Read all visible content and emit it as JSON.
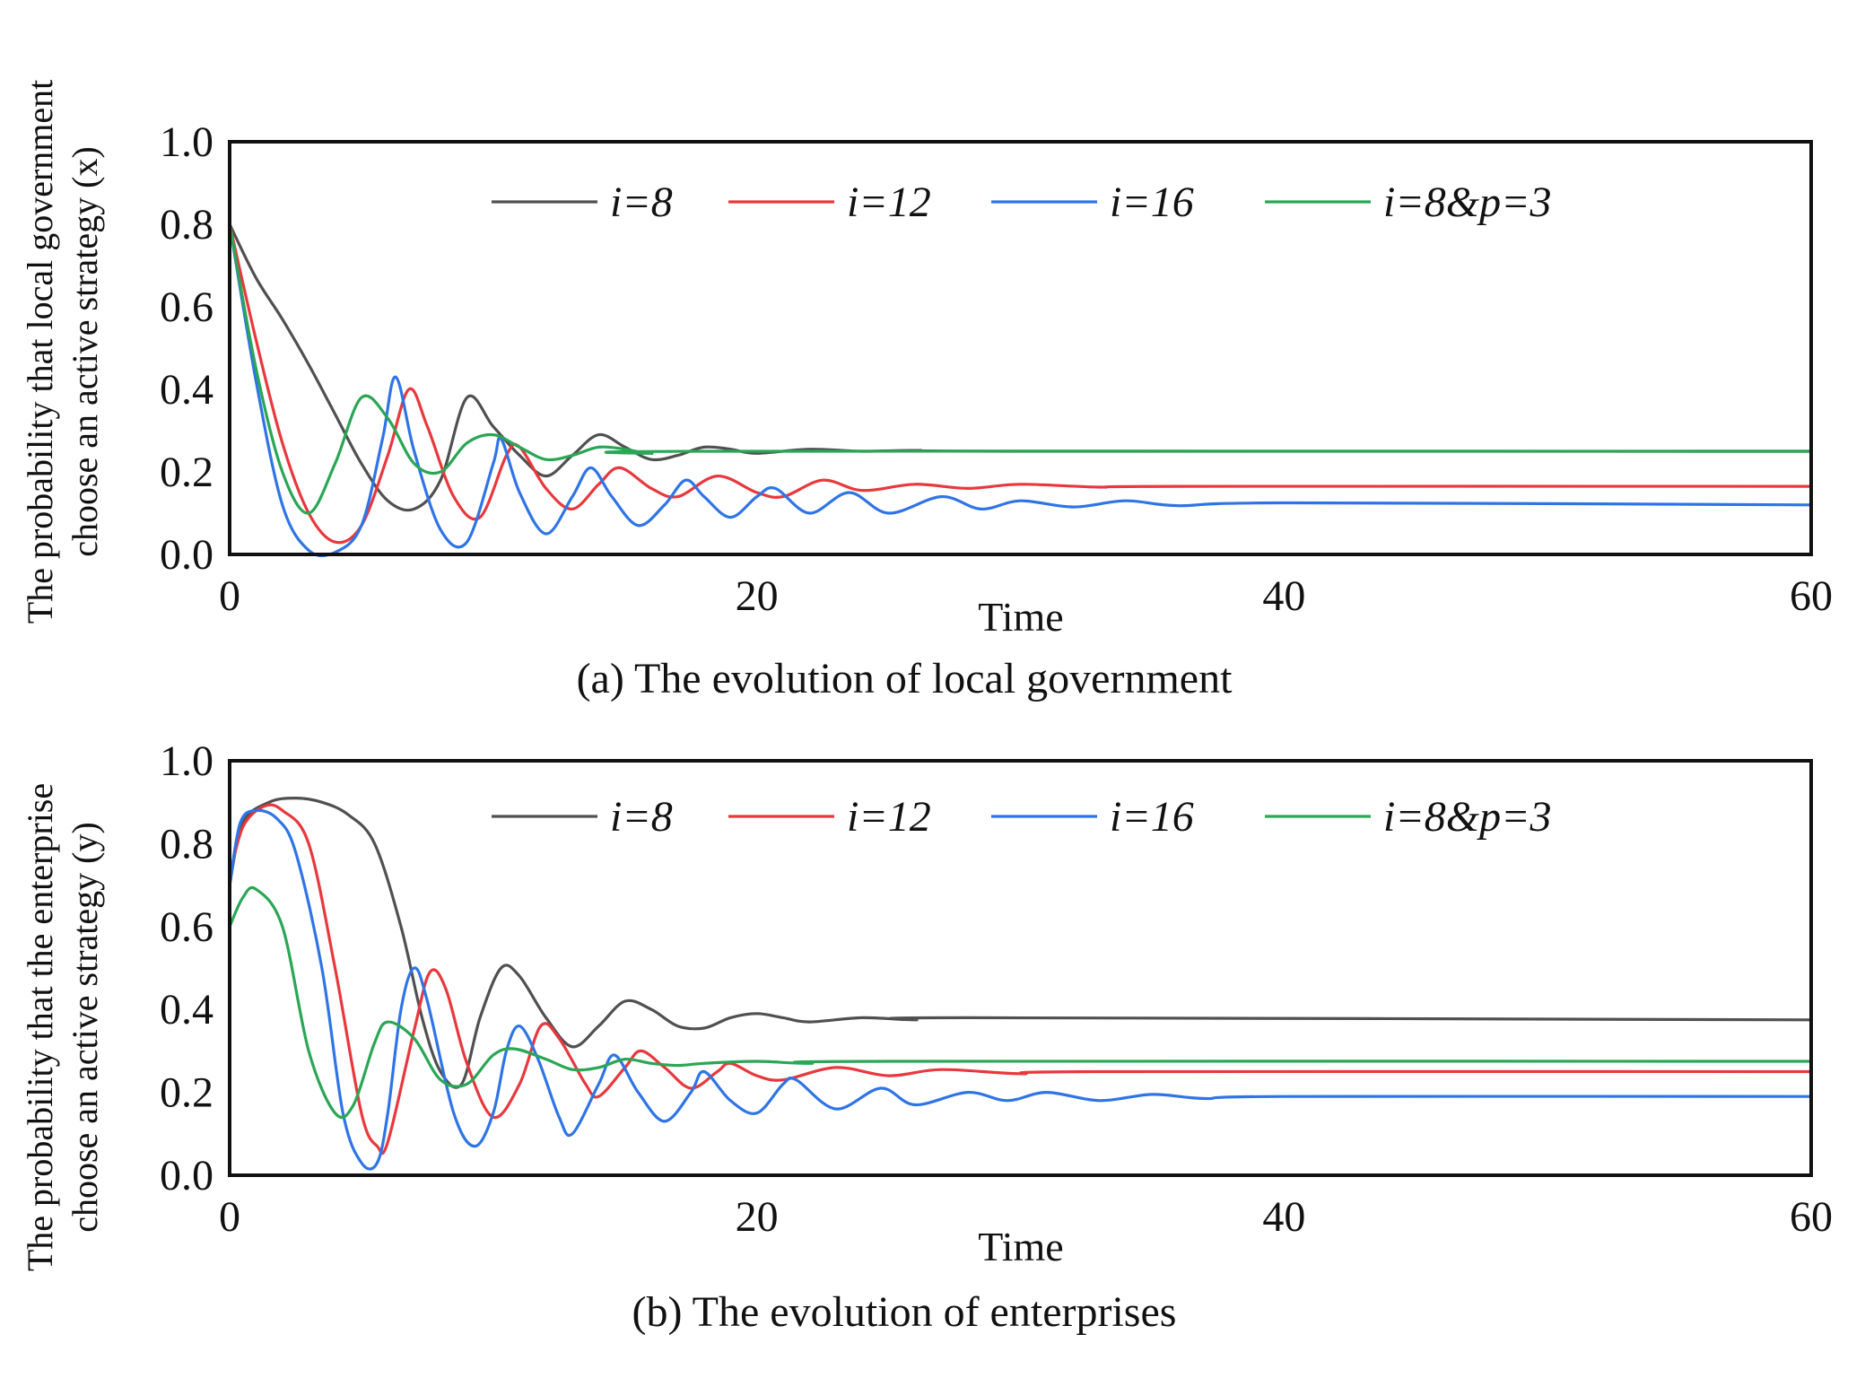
{
  "colors": {
    "i8": "#505050",
    "i12": "#e8383d",
    "i16": "#2f74e6",
    "i8p3": "#2aa655",
    "frame": "#111111"
  },
  "chart_data": [
    {
      "type": "line",
      "caption": "(a) The evolution of local government",
      "xlabel": "Time",
      "ylabel_line1": "The probability that local government",
      "ylabel_line2": "choose an active strategy (x)",
      "xlim": [
        0,
        60
      ],
      "ylim": [
        0,
        1
      ],
      "x_ticks": [
        "0",
        "20",
        "40",
        "60"
      ],
      "y_ticks": [
        "0.0",
        "0.2",
        "0.4",
        "0.6",
        "0.8",
        "1.0"
      ],
      "grid": false,
      "legend_position": "top",
      "series": [
        {
          "name": "i=8",
          "color_key": "i8",
          "points": [
            [
              0,
              0.8
            ],
            [
              1,
              0.67
            ],
            [
              2,
              0.57
            ],
            [
              3,
              0.46
            ],
            [
              4,
              0.34
            ],
            [
              5,
              0.22
            ],
            [
              6,
              0.13
            ],
            [
              7,
              0.11
            ],
            [
              8,
              0.18
            ],
            [
              9,
              0.38
            ],
            [
              10,
              0.31
            ],
            [
              11,
              0.24
            ],
            [
              12,
              0.19
            ],
            [
              13,
              0.24
            ],
            [
              14,
              0.29
            ],
            [
              15,
              0.26
            ],
            [
              16,
              0.23
            ],
            [
              17,
              0.24
            ],
            [
              18,
              0.26
            ],
            [
              19,
              0.255
            ],
            [
              20,
              0.245
            ],
            [
              22,
              0.255
            ],
            [
              24,
              0.25
            ],
            [
              26,
              0.252
            ],
            [
              30,
              0.25
            ],
            [
              60,
              0.25
            ]
          ]
        },
        {
          "name": "i=12",
          "color_key": "i12",
          "points": [
            [
              0,
              0.8
            ],
            [
              1,
              0.52
            ],
            [
              2,
              0.27
            ],
            [
              3,
              0.1
            ],
            [
              4,
              0.03
            ],
            [
              5,
              0.07
            ],
            [
              6,
              0.24
            ],
            [
              6.8,
              0.4
            ],
            [
              7.5,
              0.31
            ],
            [
              8.5,
              0.14
            ],
            [
              9.5,
              0.09
            ],
            [
              10.5,
              0.24
            ],
            [
              11,
              0.26
            ],
            [
              12,
              0.16
            ],
            [
              13,
              0.11
            ],
            [
              14,
              0.17
            ],
            [
              14.8,
              0.21
            ],
            [
              16,
              0.16
            ],
            [
              17,
              0.14
            ],
            [
              18.5,
              0.19
            ],
            [
              20,
              0.15
            ],
            [
              21,
              0.14
            ],
            [
              22.5,
              0.18
            ],
            [
              24,
              0.155
            ],
            [
              26,
              0.17
            ],
            [
              28,
              0.16
            ],
            [
              30,
              0.17
            ],
            [
              33,
              0.163
            ],
            [
              36,
              0.165
            ],
            [
              60,
              0.165
            ]
          ]
        },
        {
          "name": "i=16",
          "color_key": "i16",
          "points": [
            [
              0,
              0.8
            ],
            [
              1,
              0.42
            ],
            [
              2,
              0.12
            ],
            [
              3,
              0.01
            ],
            [
              4,
              0.005
            ],
            [
              5,
              0.07
            ],
            [
              5.8,
              0.28
            ],
            [
              6.3,
              0.43
            ],
            [
              7,
              0.25
            ],
            [
              8,
              0.06
            ],
            [
              9,
              0.03
            ],
            [
              10,
              0.22
            ],
            [
              10.3,
              0.28
            ],
            [
              11,
              0.15
            ],
            [
              12,
              0.05
            ],
            [
              13,
              0.14
            ],
            [
              13.7,
              0.21
            ],
            [
              14.5,
              0.14
            ],
            [
              15.5,
              0.07
            ],
            [
              16.5,
              0.12
            ],
            [
              17.3,
              0.18
            ],
            [
              18,
              0.14
            ],
            [
              19,
              0.09
            ],
            [
              20,
              0.14
            ],
            [
              20.7,
              0.16
            ],
            [
              22,
              0.1
            ],
            [
              23.5,
              0.15
            ],
            [
              25,
              0.1
            ],
            [
              27,
              0.14
            ],
            [
              28.5,
              0.11
            ],
            [
              30,
              0.13
            ],
            [
              32,
              0.115
            ],
            [
              34,
              0.13
            ],
            [
              36,
              0.118
            ],
            [
              40,
              0.125
            ],
            [
              60,
              0.12
            ]
          ]
        },
        {
          "name": "i=8&p=3",
          "color_key": "i8p3",
          "points": [
            [
              0,
              0.8
            ],
            [
              1,
              0.45
            ],
            [
              2,
              0.2
            ],
            [
              3,
              0.1
            ],
            [
              4,
              0.22
            ],
            [
              5,
              0.38
            ],
            [
              6,
              0.33
            ],
            [
              7,
              0.22
            ],
            [
              8,
              0.2
            ],
            [
              9,
              0.27
            ],
            [
              10,
              0.29
            ],
            [
              11,
              0.26
            ],
            [
              12,
              0.23
            ],
            [
              13,
              0.24
            ],
            [
              14,
              0.26
            ],
            [
              15,
              0.255
            ],
            [
              16,
              0.245
            ],
            [
              18,
              0.25
            ],
            [
              60,
              0.25
            ]
          ]
        }
      ]
    },
    {
      "type": "line",
      "caption": "(b) The evolution of enterprises",
      "xlabel": "Time",
      "ylabel_line1": "The probability that the enterprise",
      "ylabel_line2": "choose an active strategy (y)",
      "xlim": [
        0,
        60
      ],
      "ylim": [
        0,
        1
      ],
      "x_ticks": [
        "0",
        "20",
        "40",
        "60"
      ],
      "y_ticks": [
        "0.0",
        "0.2",
        "0.4",
        "0.6",
        "0.8",
        "1.0"
      ],
      "grid": false,
      "legend_position": "top",
      "series": [
        {
          "name": "i=8",
          "color_key": "i8",
          "points": [
            [
              0,
              0.7
            ],
            [
              0.5,
              0.85
            ],
            [
              1.5,
              0.9
            ],
            [
              2.5,
              0.91
            ],
            [
              3.5,
              0.9
            ],
            [
              4.5,
              0.87
            ],
            [
              5.5,
              0.8
            ],
            [
              6.5,
              0.6
            ],
            [
              7.3,
              0.38
            ],
            [
              8,
              0.25
            ],
            [
              8.8,
              0.22
            ],
            [
              9.5,
              0.38
            ],
            [
              10.3,
              0.5
            ],
            [
              11,
              0.48
            ],
            [
              12,
              0.38
            ],
            [
              13,
              0.31
            ],
            [
              14,
              0.36
            ],
            [
              15,
              0.42
            ],
            [
              16,
              0.4
            ],
            [
              17,
              0.36
            ],
            [
              18,
              0.355
            ],
            [
              19,
              0.38
            ],
            [
              20,
              0.39
            ],
            [
              21,
              0.38
            ],
            [
              22,
              0.37
            ],
            [
              24,
              0.38
            ],
            [
              26,
              0.375
            ],
            [
              28,
              0.38
            ],
            [
              60,
              0.375
            ]
          ]
        },
        {
          "name": "i=12",
          "color_key": "i12",
          "points": [
            [
              0,
              0.72
            ],
            [
              0.5,
              0.84
            ],
            [
              1.3,
              0.89
            ],
            [
              2,
              0.88
            ],
            [
              3,
              0.8
            ],
            [
              4,
              0.5
            ],
            [
              5,
              0.15
            ],
            [
              5.6,
              0.07
            ],
            [
              6,
              0.08
            ],
            [
              7,
              0.35
            ],
            [
              7.6,
              0.49
            ],
            [
              8.2,
              0.45
            ],
            [
              9,
              0.27
            ],
            [
              10,
              0.14
            ],
            [
              11,
              0.22
            ],
            [
              11.8,
              0.36
            ],
            [
              12.5,
              0.33
            ],
            [
              13.5,
              0.22
            ],
            [
              14,
              0.19
            ],
            [
              15,
              0.26
            ],
            [
              15.6,
              0.3
            ],
            [
              16.5,
              0.26
            ],
            [
              17.5,
              0.21
            ],
            [
              18.5,
              0.25
            ],
            [
              19,
              0.27
            ],
            [
              20,
              0.24
            ],
            [
              21,
              0.23
            ],
            [
              23,
              0.26
            ],
            [
              25,
              0.24
            ],
            [
              27,
              0.255
            ],
            [
              30,
              0.245
            ],
            [
              33,
              0.25
            ],
            [
              60,
              0.25
            ]
          ]
        },
        {
          "name": "i=16",
          "color_key": "i16",
          "points": [
            [
              0,
              0.7
            ],
            [
              0.4,
              0.85
            ],
            [
              1,
              0.88
            ],
            [
              1.8,
              0.86
            ],
            [
              2.5,
              0.78
            ],
            [
              3.5,
              0.5
            ],
            [
              4.3,
              0.15
            ],
            [
              5,
              0.03
            ],
            [
              5.6,
              0.03
            ],
            [
              6,
              0.15
            ],
            [
              6.5,
              0.4
            ],
            [
              7,
              0.5
            ],
            [
              7.5,
              0.42
            ],
            [
              8.5,
              0.15
            ],
            [
              9.3,
              0.07
            ],
            [
              10,
              0.15
            ],
            [
              10.5,
              0.3
            ],
            [
              11,
              0.36
            ],
            [
              11.7,
              0.28
            ],
            [
              12.5,
              0.14
            ],
            [
              13,
              0.1
            ],
            [
              14,
              0.22
            ],
            [
              14.6,
              0.29
            ],
            [
              15.5,
              0.2
            ],
            [
              16.5,
              0.13
            ],
            [
              17.5,
              0.2
            ],
            [
              18,
              0.25
            ],
            [
              19,
              0.18
            ],
            [
              20,
              0.15
            ],
            [
              21,
              0.22
            ],
            [
              21.5,
              0.23
            ],
            [
              23,
              0.16
            ],
            [
              24.7,
              0.21
            ],
            [
              26,
              0.17
            ],
            [
              28,
              0.2
            ],
            [
              29.5,
              0.18
            ],
            [
              31,
              0.2
            ],
            [
              33,
              0.18
            ],
            [
              35,
              0.195
            ],
            [
              37,
              0.185
            ],
            [
              40,
              0.19
            ],
            [
              60,
              0.19
            ]
          ]
        },
        {
          "name": "i=8&p=3",
          "color_key": "i8p3",
          "points": [
            [
              0,
              0.6
            ],
            [
              0.5,
              0.67
            ],
            [
              1,
              0.69
            ],
            [
              2,
              0.6
            ],
            [
              3,
              0.3
            ],
            [
              4,
              0.15
            ],
            [
              4.7,
              0.17
            ],
            [
              5.5,
              0.32
            ],
            [
              6,
              0.37
            ],
            [
              7,
              0.33
            ],
            [
              8,
              0.23
            ],
            [
              9,
              0.22
            ],
            [
              10,
              0.29
            ],
            [
              10.8,
              0.305
            ],
            [
              12,
              0.28
            ],
            [
              13,
              0.255
            ],
            [
              14,
              0.26
            ],
            [
              15,
              0.28
            ],
            [
              16,
              0.27
            ],
            [
              17,
              0.265
            ],
            [
              18,
              0.27
            ],
            [
              20,
              0.275
            ],
            [
              22,
              0.27
            ],
            [
              25,
              0.275
            ],
            [
              60,
              0.275
            ]
          ]
        }
      ]
    }
  ]
}
